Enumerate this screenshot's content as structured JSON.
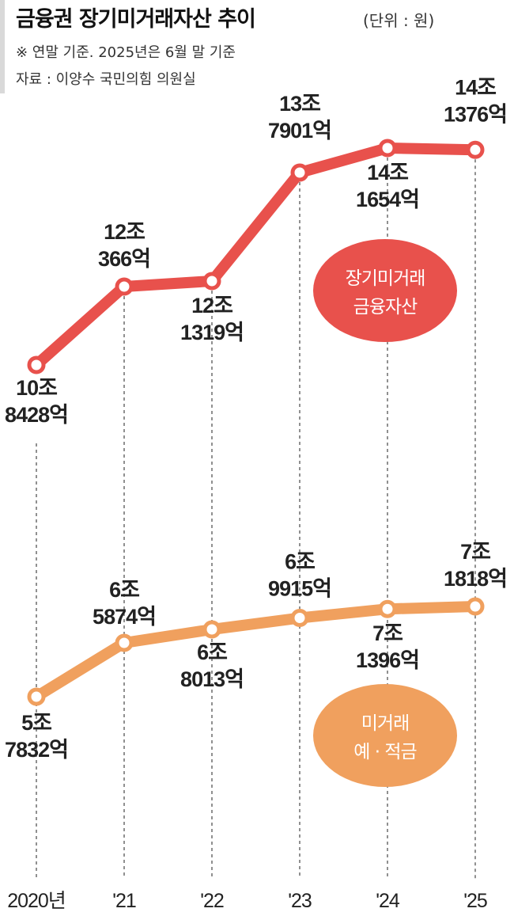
{
  "header": {
    "title": "금융권 장기미거래자산 추이",
    "unit": "(단위 : 원)",
    "note": "※ 연말 기준. 2025년은 6월 말 기준",
    "source": "자료 : 이양수 국민의힘 의원실"
  },
  "chart_data": {
    "type": "line",
    "x": [
      "2020년",
      "'21",
      "'22",
      "'23",
      "'24",
      "'25"
    ],
    "unit": "억원",
    "y_scale": "split",
    "grid": "vertical dashed",
    "series": [
      {
        "name": "장기미거래 금융자산",
        "color": "#e8514c",
        "values": [
          108428,
          120366,
          121319,
          137901,
          141654,
          141376
        ],
        "labels": [
          [
            "10조",
            "8428억"
          ],
          [
            "12조",
            "366억"
          ],
          [
            "12조",
            "1319억"
          ],
          [
            "13조",
            "7901억"
          ],
          [
            "14조",
            "1654억"
          ],
          [
            "14조",
            "1376억"
          ]
        ],
        "badge": [
          "장기미거래",
          "금융자산"
        ]
      },
      {
        "name": "미거래 예·적금",
        "color": "#f0a05e",
        "values": [
          57832,
          65874,
          68013,
          69915,
          71396,
          71818
        ],
        "labels": [
          [
            "5조",
            "7832억"
          ],
          [
            "6조",
            "5874억"
          ],
          [
            "6조",
            "8013억"
          ],
          [
            "6조",
            "9915억"
          ],
          [
            "7조",
            "1396억"
          ],
          [
            "7조",
            "1818억"
          ]
        ],
        "badge": [
          "미거래",
          "예 · 적금"
        ]
      }
    ]
  }
}
